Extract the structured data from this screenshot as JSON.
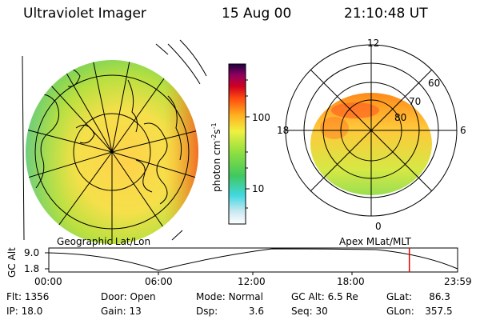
{
  "header": {
    "instrument": "Ultraviolet Imager",
    "date": "15 Aug 00",
    "time": "21:10:48 UT"
  },
  "colorbar": {
    "unit_label": "photon cm",
    "unit_sup1": "-2",
    "unit_mid": "s",
    "unit_sup2": "-1",
    "tick_high": "100",
    "tick_low": "10"
  },
  "polar_grid": {
    "mlt_labels": [
      "12",
      "18",
      "6",
      "0"
    ],
    "lat_labels": [
      "60",
      "70",
      "80"
    ]
  },
  "panels": {
    "left_caption": "Geographic Lat/Lon",
    "right_caption": "Apex MLat/MLT"
  },
  "orbit_plot": {
    "ylabel": "GC Alt",
    "y_ticks": [
      "9.0",
      "1.8"
    ],
    "x_ticks": [
      "00:00",
      "06:00",
      "12:00",
      "18:00",
      "23:59"
    ],
    "current_marker_fraction": 0.882
  },
  "status": {
    "row1": [
      {
        "label": "Flt:",
        "value": "1356"
      },
      {
        "label": "Door:",
        "value": "Open"
      },
      {
        "label": "Mode:",
        "value": "Normal"
      },
      {
        "label": "GC Alt:",
        "value": "6.5 Re"
      },
      {
        "label": "GLat:",
        "value": "86.3"
      }
    ],
    "row2": [
      {
        "label": "IP:",
        "value": "18.0"
      },
      {
        "label": "Gain:",
        "value": "13"
      },
      {
        "label": "Dsp:",
        "value": "3.6"
      },
      {
        "label": "Seq:",
        "value": "30"
      },
      {
        "label": "GLon:",
        "value": "357.5"
      }
    ]
  },
  "colors": {
    "marker": "#e60000",
    "grid": "#000000"
  }
}
